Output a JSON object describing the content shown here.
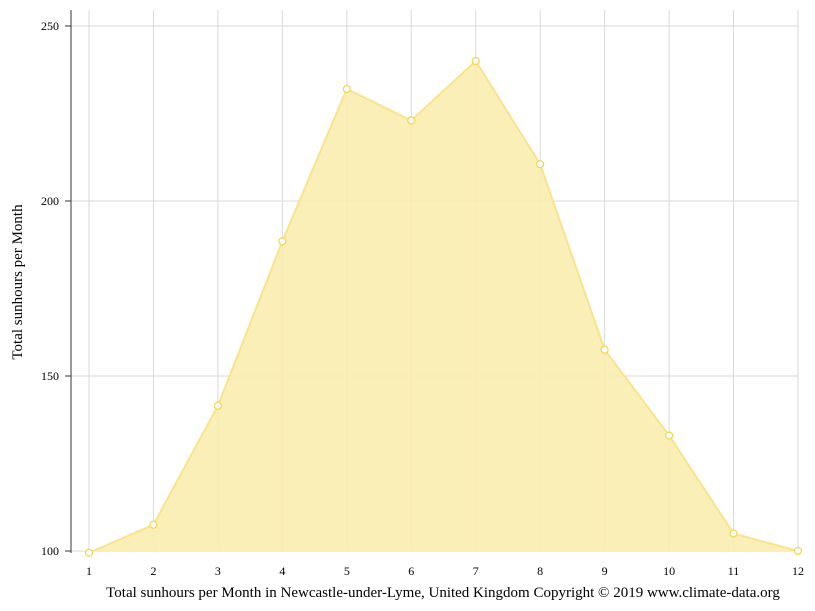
{
  "chart_data": {
    "type": "area",
    "x": [
      1,
      2,
      3,
      4,
      5,
      6,
      7,
      8,
      9,
      10,
      11,
      12
    ],
    "values": [
      99.5,
      107.5,
      141.5,
      188.5,
      232,
      223,
      240,
      210.5,
      157.5,
      133,
      105,
      100
    ],
    "xlabel": "",
    "ylabel": "Total sunhours per Month",
    "x_ticks": [
      "1",
      "2",
      "3",
      "4",
      "5",
      "6",
      "7",
      "8",
      "9",
      "10",
      "11",
      "12"
    ],
    "y_ticks": [
      "100",
      "150",
      "200",
      "250"
    ],
    "ylim": [
      100,
      250
    ],
    "grid": true,
    "colors": {
      "fill": "#f9edae",
      "line": "#f7e48c",
      "marker_stroke": "#f2d64e",
      "grid": "#d9d9d9",
      "axis": "#333333"
    }
  },
  "caption": "Total sunhours per Month in Newcastle-under-Lyme, United Kingdom Copyright © 2019 www.climate-data.org"
}
